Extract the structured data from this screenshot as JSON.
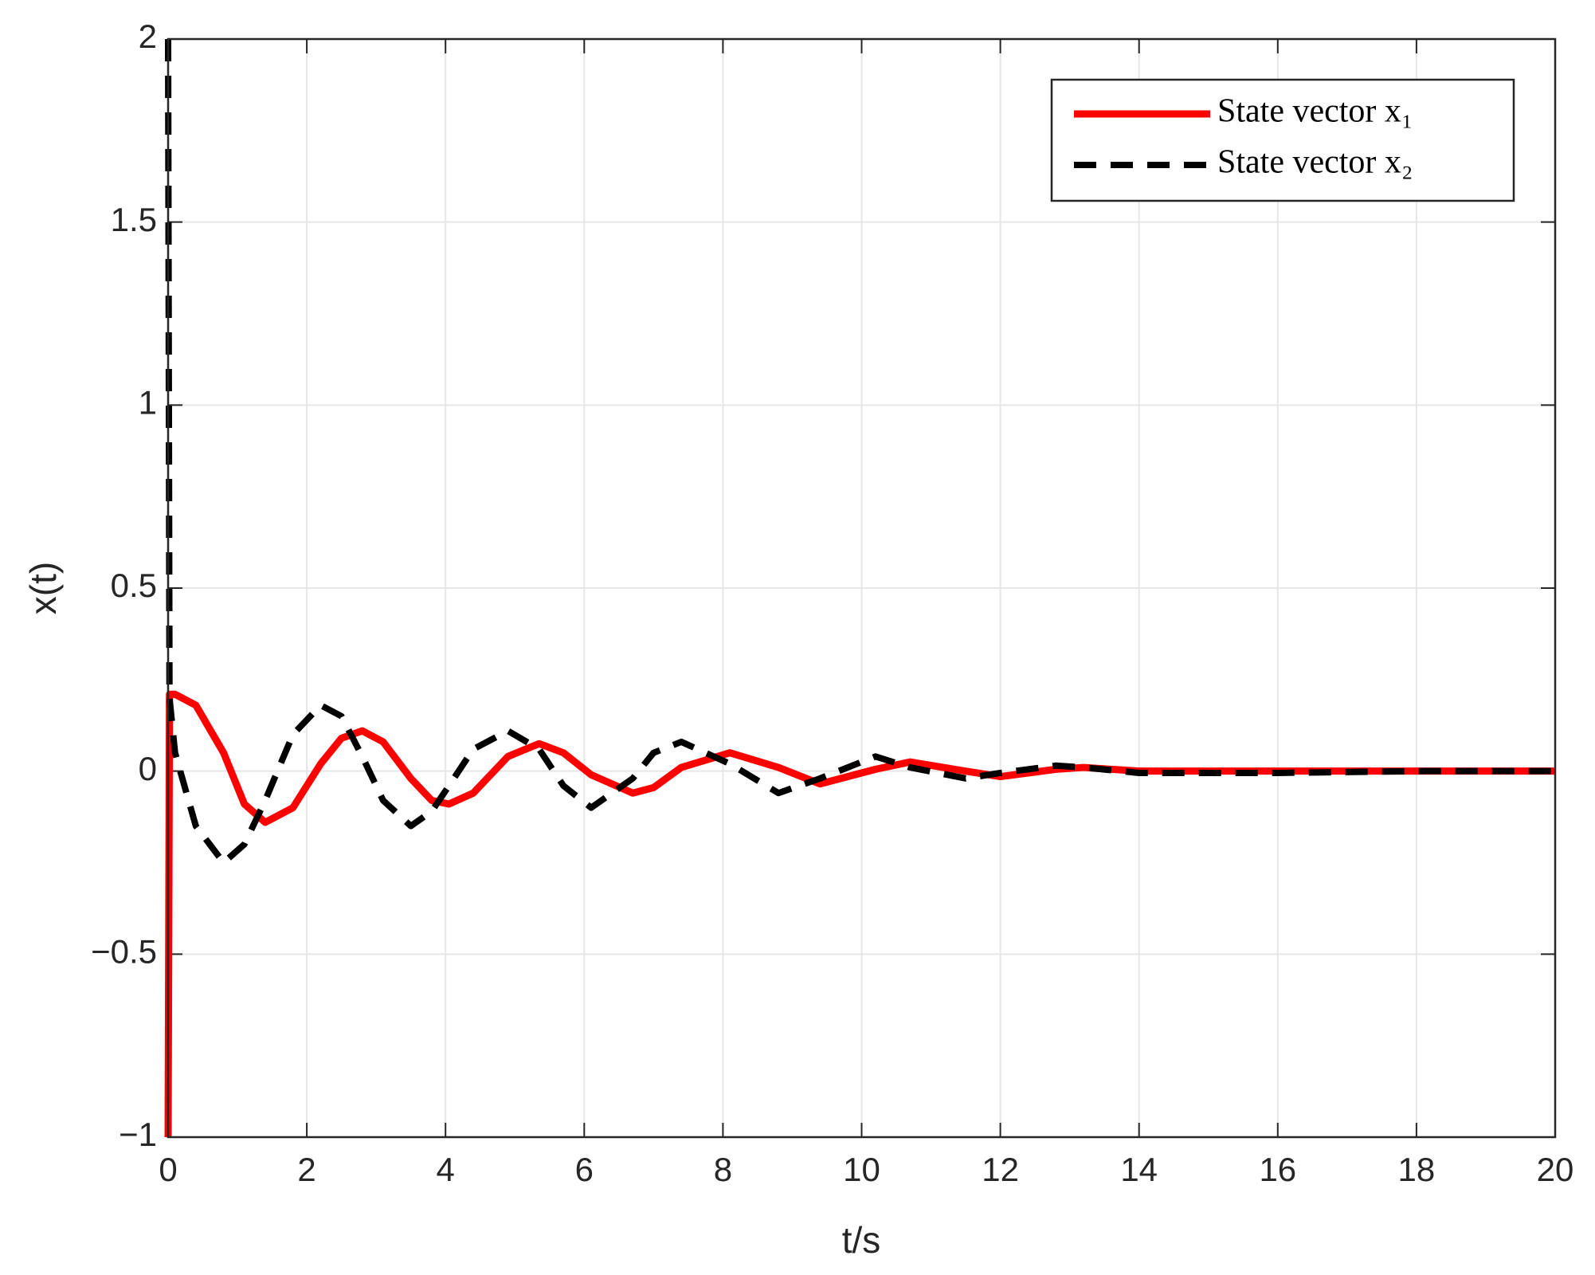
{
  "chart_data": {
    "type": "line",
    "xlabel": "t/s",
    "ylabel": "x(t)",
    "xlim": [
      0,
      20
    ],
    "ylim": [
      -1,
      2
    ],
    "xticks": [
      0,
      2,
      4,
      6,
      8,
      10,
      12,
      14,
      16,
      18,
      20
    ],
    "yticks": [
      {
        "value": -1,
        "label": "−1"
      },
      {
        "value": -0.5,
        "label": "−0.5"
      },
      0,
      0.5,
      1,
      1.5,
      2
    ],
    "grid": true,
    "legend": "upper right",
    "x": [
      0,
      0.02,
      0.1,
      0.4,
      0.8,
      1.1,
      1.4,
      1.8,
      2.2,
      2.5,
      2.8,
      3.1,
      3.5,
      3.8,
      4.05,
      4.4,
      4.9,
      5.35,
      5.7,
      6.1,
      6.7,
      7.0,
      7.4,
      8.1,
      8.8,
      9.4,
      10.2,
      10.7,
      11.5,
      12,
      12.8,
      13.2,
      14,
      16,
      18,
      20
    ],
    "series": [
      {
        "name": "State vector x₁",
        "color": "#ff0000",
        "dash": "solid",
        "values": [
          -1,
          0.21,
          0.21,
          0.18,
          0.05,
          -0.09,
          -0.14,
          -0.1,
          0.02,
          0.09,
          0.11,
          0.08,
          -0.02,
          -0.08,
          -0.09,
          -0.06,
          0.04,
          0.075,
          0.05,
          -0.01,
          -0.06,
          -0.045,
          0.01,
          0.05,
          0.01,
          -0.035,
          0.005,
          0.025,
          0.0,
          -0.015,
          0.005,
          0.01,
          0,
          0,
          0,
          0
        ]
      },
      {
        "name": "State vector x₂",
        "color": "#000000",
        "dash": "dashed",
        "values": [
          2,
          0.2,
          0.05,
          -0.15,
          -0.25,
          -0.2,
          -0.08,
          0.1,
          0.18,
          0.15,
          0.04,
          -0.08,
          -0.15,
          -0.11,
          -0.04,
          0.06,
          0.11,
          0.06,
          -0.04,
          -0.1,
          -0.02,
          0.05,
          0.08,
          0.02,
          -0.06,
          -0.02,
          0.04,
          0.01,
          -0.02,
          -0.005,
          0.015,
          0.01,
          -0.005,
          -0.005,
          0,
          0
        ]
      }
    ]
  }
}
